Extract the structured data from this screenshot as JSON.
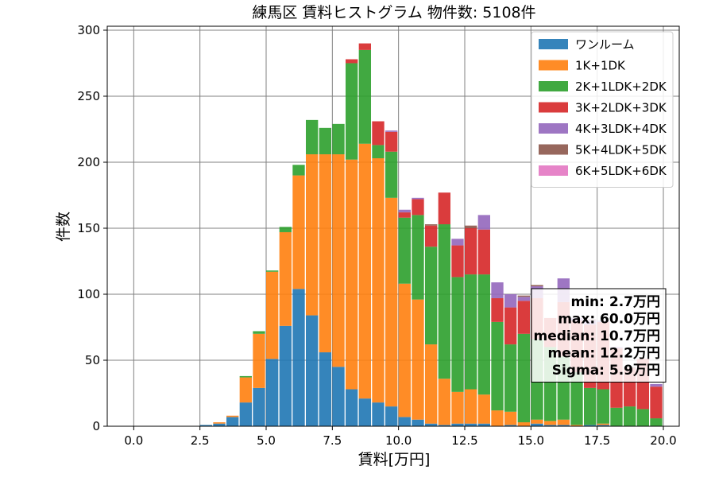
{
  "chart_data": {
    "type": "bar",
    "stacked": true,
    "title": "練馬区 賃料ヒストグラム  物件数: 5108件",
    "xlabel": "賃料[万円]",
    "ylabel": "件数",
    "xlim": [
      -1.0,
      20.6
    ],
    "ylim": [
      0,
      303
    ],
    "grid": true,
    "legend_position": "top-right",
    "bin_width": 0.5,
    "x_ticks": [
      0,
      2.5,
      5,
      7.5,
      10,
      12.5,
      15,
      17.5,
      20
    ],
    "x_tick_labels": [
      "0.0",
      "2.5",
      "5.0",
      "7.5",
      "10.0",
      "12.5",
      "15.0",
      "17.5",
      "20.0"
    ],
    "y_ticks": [
      0,
      50,
      100,
      150,
      200,
      250,
      300
    ],
    "y_tick_labels": [
      "0",
      "50",
      "100",
      "150",
      "200",
      "250",
      "300"
    ],
    "x": [
      2.5,
      3.0,
      3.5,
      4.0,
      4.5,
      5.0,
      5.5,
      6.0,
      6.5,
      7.0,
      7.5,
      8.0,
      8.5,
      9.0,
      9.5,
      10.0,
      10.5,
      11.0,
      11.5,
      12.0,
      12.5,
      13.0,
      13.5,
      14.0,
      14.5,
      15.0,
      15.5,
      16.0,
      16.5,
      17.0,
      17.5,
      18.0,
      18.5,
      19.0,
      19.5
    ],
    "series": [
      {
        "name": "ワンルーム",
        "color": "#1f77b4",
        "values": [
          1,
          2,
          7,
          18,
          29,
          51,
          76,
          104,
          84,
          56,
          45,
          28,
          21,
          18,
          15,
          7,
          5,
          2,
          1,
          2,
          2,
          2,
          0,
          1,
          0,
          2,
          1,
          1,
          0,
          1,
          1,
          0,
          0,
          0,
          0
        ]
      },
      {
        "name": "1K+1DK",
        "color": "#ff7f0e",
        "values": [
          0,
          1,
          1,
          19,
          41,
          66,
          71,
          86,
          122,
          150,
          161,
          174,
          193,
          185,
          158,
          101,
          91,
          60,
          35,
          24,
          26,
          22,
          12,
          10,
          3,
          3,
          3,
          4,
          1,
          0,
          1,
          0,
          0,
          0,
          0
        ]
      },
      {
        "name": "2K+1LDK+2DK",
        "color": "#2ca02c",
        "values": [
          0,
          0,
          0,
          1,
          2,
          1,
          4,
          8,
          26,
          20,
          23,
          73,
          71,
          10,
          35,
          50,
          64,
          74,
          117,
          87,
          87,
          91,
          67,
          51,
          67,
          61,
          56,
          48,
          40,
          28,
          26,
          14,
          15,
          13,
          6
        ]
      },
      {
        "name": "3K+2LDK+3DK",
        "color": "#d62728",
        "values": [
          0,
          0,
          0,
          0,
          0,
          0,
          0,
          0,
          0,
          0,
          0,
          3,
          5,
          18,
          15,
          4,
          12,
          16,
          24,
          24,
          35,
          34,
          18,
          28,
          25,
          31,
          22,
          41,
          39,
          48,
          51,
          45,
          29,
          38,
          24
        ]
      },
      {
        "name": "4K+3LDK+4DK",
        "color": "#9467bd",
        "values": [
          0,
          0,
          0,
          0,
          0,
          0,
          0,
          0,
          0,
          0,
          0,
          0,
          0,
          0,
          1,
          2,
          1,
          0,
          0,
          5,
          0,
          11,
          12,
          10,
          3,
          9,
          0,
          18,
          2,
          3,
          1,
          1,
          0,
          0,
          2
        ]
      },
      {
        "name": "5K+4LDK+5DK",
        "color": "#8c564b",
        "values": [
          0,
          0,
          0,
          0,
          0,
          0,
          0,
          0,
          0,
          0,
          0,
          0,
          0,
          0,
          0,
          0,
          0,
          1,
          0,
          0,
          2,
          0,
          0,
          0,
          1,
          1,
          0,
          0,
          0,
          1,
          0,
          0,
          1,
          0,
          0
        ]
      },
      {
        "name": "6K+5LDK+6DK",
        "color": "#e377c2",
        "values": [
          0,
          0,
          0,
          0,
          0,
          0,
          0,
          0,
          0,
          0,
          0,
          0,
          0,
          0,
          0,
          0,
          0,
          0,
          0,
          0,
          0,
          0,
          0,
          0,
          0,
          0,
          0,
          0,
          0,
          0,
          0,
          0,
          0,
          0,
          0
        ]
      }
    ],
    "stats_box": {
      "lines": [
        "min: 2.7万円",
        "max: 60.0万円",
        "median: 10.7万円",
        "mean: 12.2万円",
        "Sigma: 5.9万円"
      ],
      "position": "right"
    }
  }
}
